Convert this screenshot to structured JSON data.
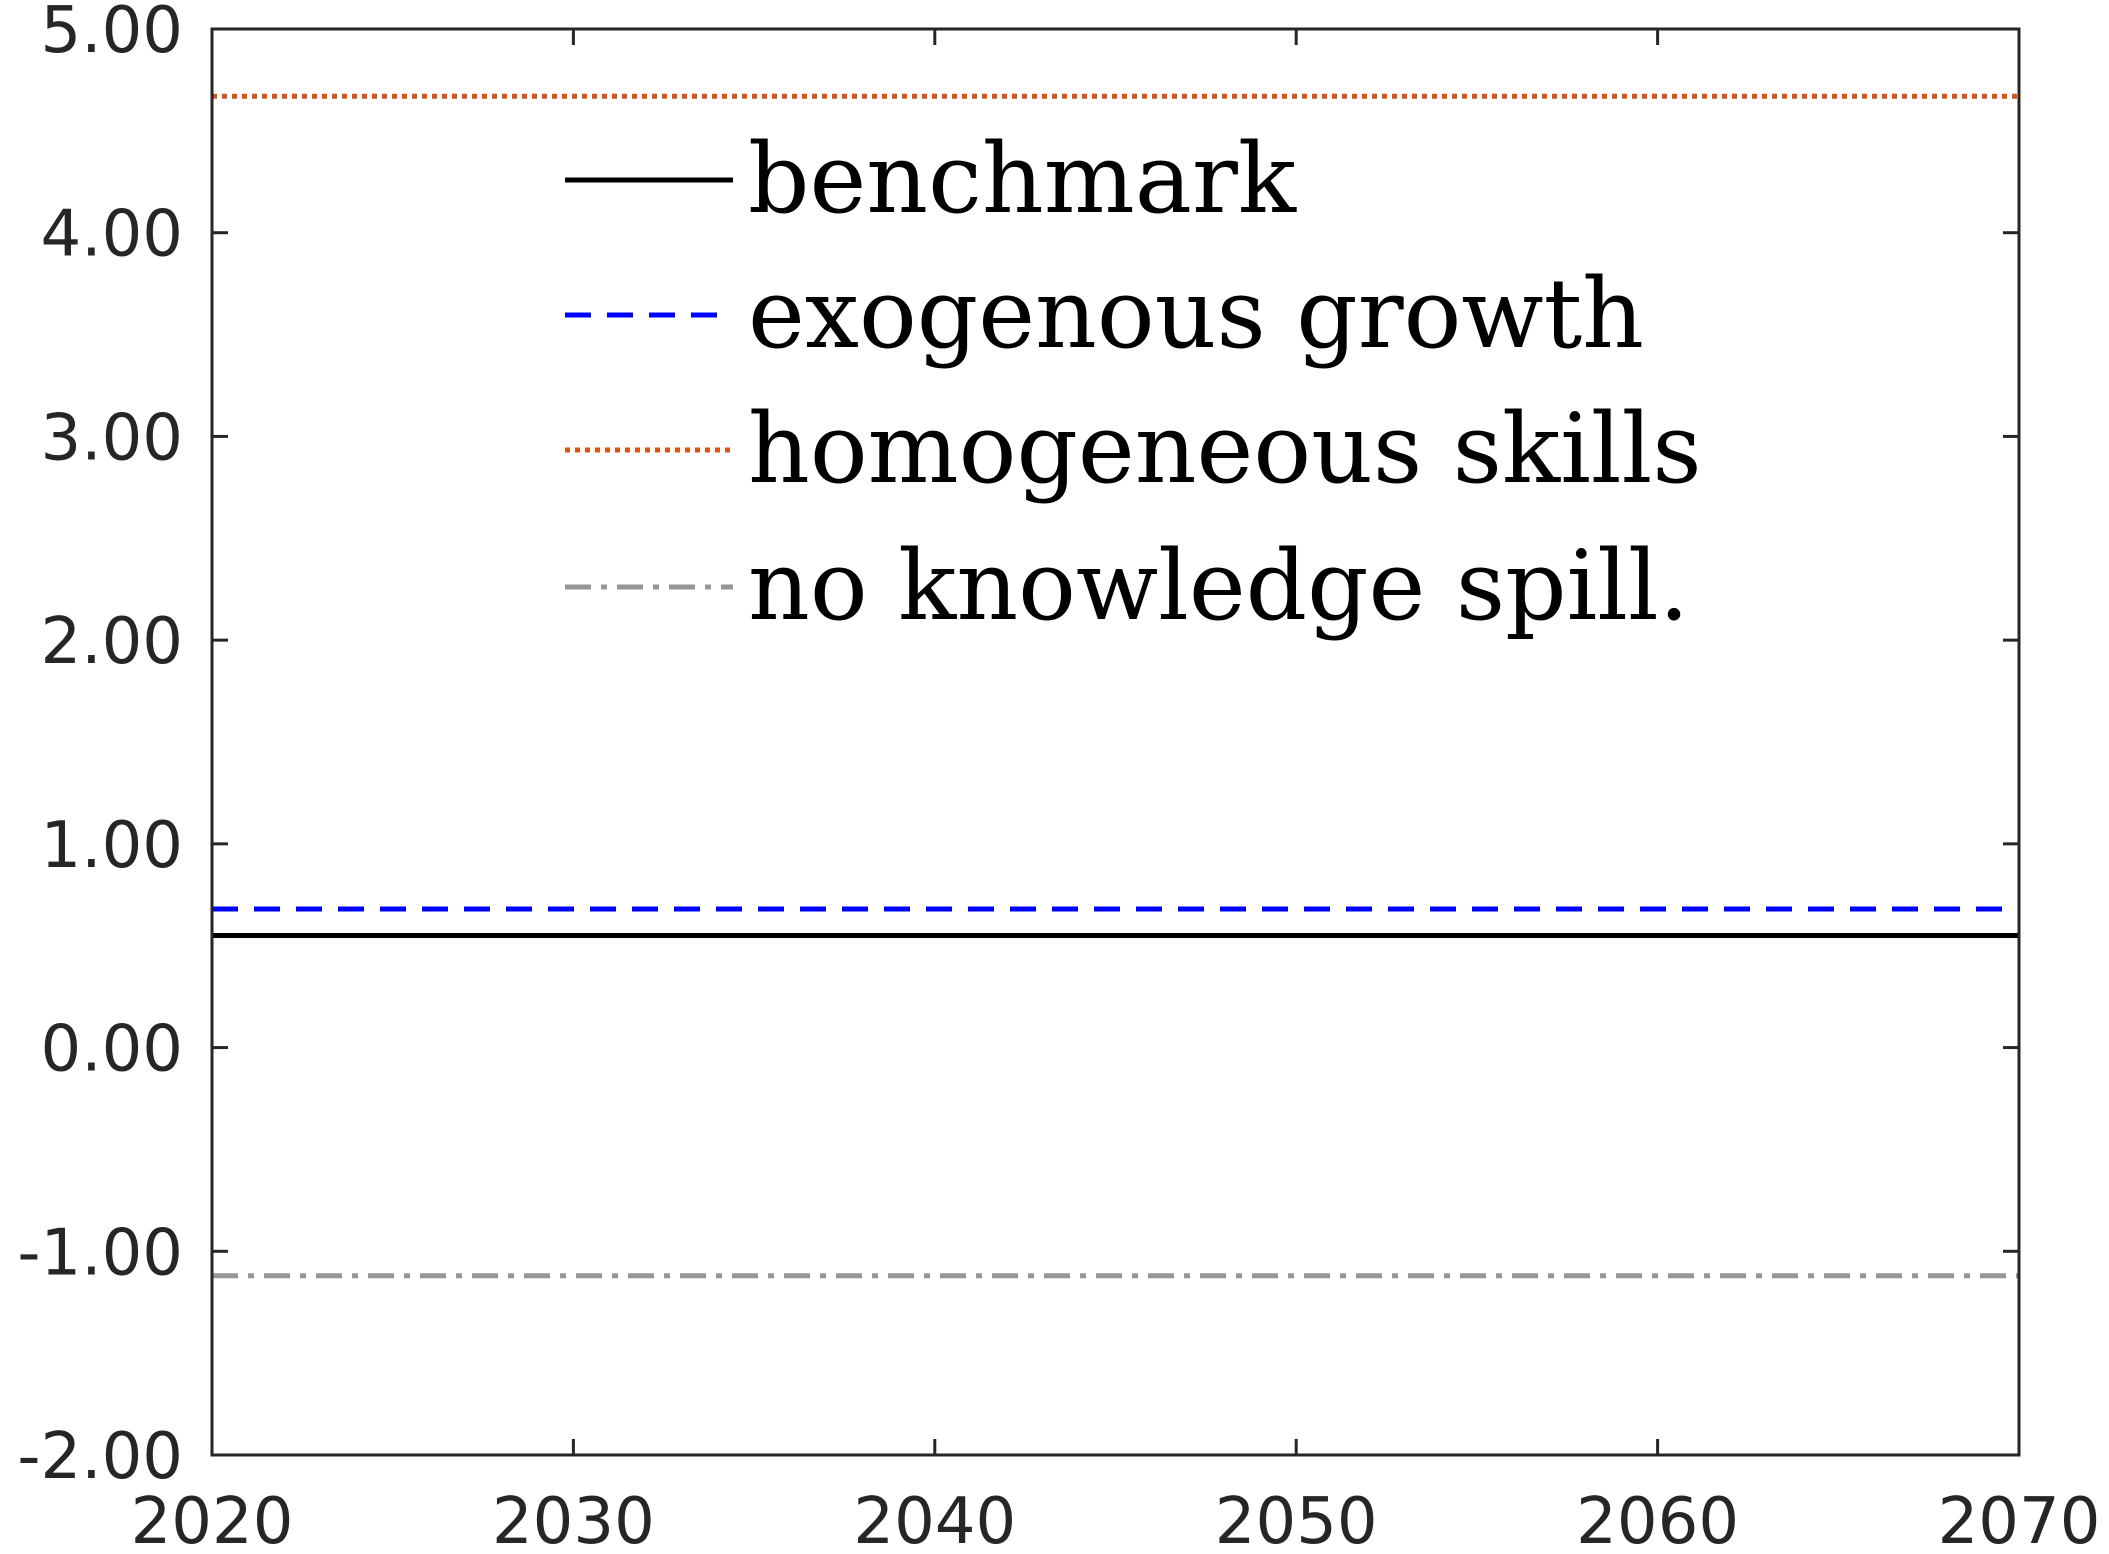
{
  "chart_data": {
    "type": "line",
    "title": "",
    "xlabel": "",
    "ylabel": "",
    "xlim": [
      2020,
      2070
    ],
    "ylim": [
      -2,
      5
    ],
    "x_ticks": [
      2020,
      2030,
      2040,
      2050,
      2060,
      2070
    ],
    "x_tick_labels": [
      "2020",
      "2030",
      "2040",
      "2050",
      "2060",
      "2070"
    ],
    "y_ticks": [
      -2,
      -1,
      0,
      1,
      2,
      3,
      4,
      5
    ],
    "y_tick_labels": [
      "-2.00",
      "-1.00",
      "0.00",
      "1.00",
      "2.00",
      "3.00",
      "4.00",
      "5.00"
    ],
    "grid": false,
    "legend_position": "top-center",
    "series": [
      {
        "name": "benchmark",
        "x": [
          2020,
          2070
        ],
        "values": [
          0.55,
          0.55
        ],
        "color": "#000000",
        "style": "solid"
      },
      {
        "name": "exogenous growth",
        "x": [
          2020,
          2070
        ],
        "values": [
          0.68,
          0.68
        ],
        "color": "#0000ff",
        "style": "dashed"
      },
      {
        "name": "homogeneous skills",
        "x": [
          2020,
          2070
        ],
        "values": [
          4.67,
          4.67
        ],
        "color": "#d95319",
        "style": "dotted"
      },
      {
        "name": "no knowledge spill.",
        "x": [
          2020,
          2070
        ],
        "values": [
          -1.12,
          -1.12
        ],
        "color": "#969696",
        "style": "dashdot"
      }
    ]
  }
}
